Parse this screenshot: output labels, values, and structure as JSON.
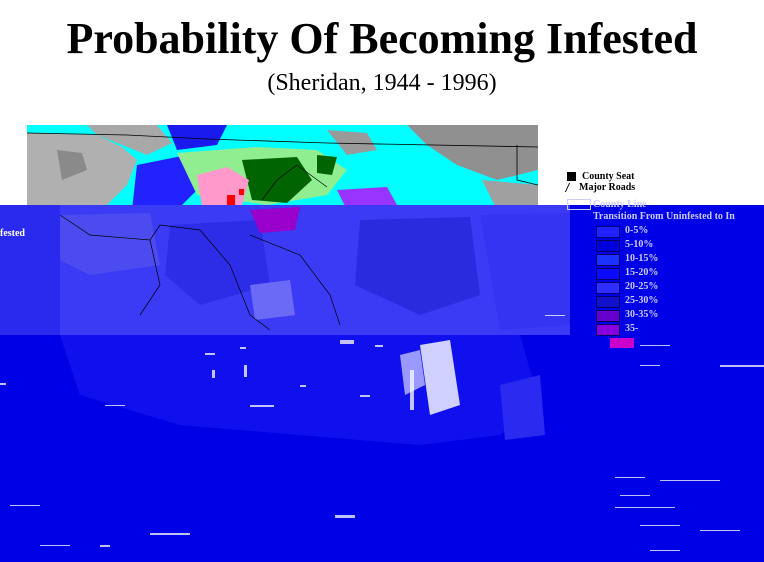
{
  "map": {
    "title": "Probability Of Becoming Infested",
    "subtitle": "(Sheridan, 1944 - 1996)",
    "side_label": "fested",
    "colors": {
      "background": "#ffffff",
      "ocean_blue": "#0000e6",
      "cyan": "#00ffff",
      "gray": "#a0a0a0",
      "light_green": "#90ee90",
      "dark_green": "#006400",
      "pink": "#ff99cc",
      "red": "#ff0000",
      "purple": "#9900cc"
    }
  },
  "legend": {
    "items": [
      {
        "label": "County Seat",
        "icon": "county-seat-icon"
      },
      {
        "label": "Major Roads",
        "icon": "road-icon"
      },
      {
        "label": "County Line",
        "icon": "county-line-icon"
      }
    ],
    "title": "Transition From Uninfested to In",
    "classes": [
      {
        "label": "0-5%",
        "color": "#2222ff"
      },
      {
        "label": "5-10%",
        "color": "#0000dd"
      },
      {
        "label": "10-15%",
        "color": "#1a33ff"
      },
      {
        "label": "15-20%",
        "color": "#0a0aff"
      },
      {
        "label": "20-25%",
        "color": "#2d2dff"
      },
      {
        "label": "25-30%",
        "color": "#1111cc"
      },
      {
        "label": "30-35%",
        "color": "#6600cc"
      },
      {
        "label": "35-",
        "color": "#8800dd"
      }
    ]
  }
}
